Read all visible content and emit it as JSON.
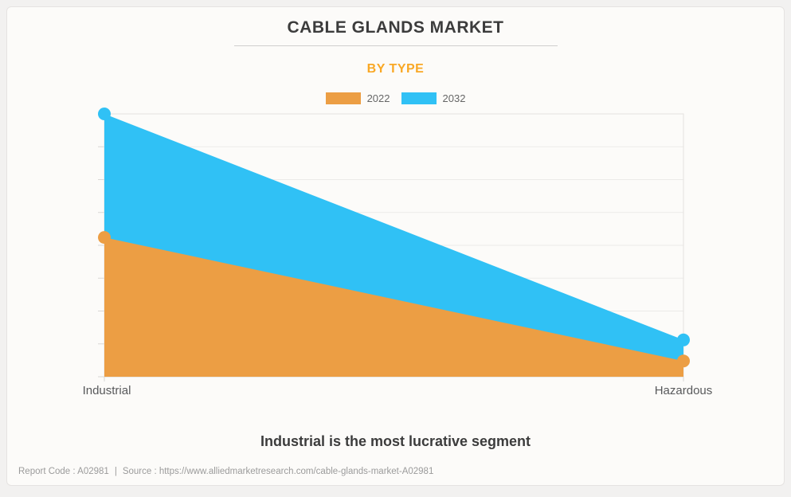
{
  "page": {
    "background_color": "#F2F1F0",
    "card_background": "#FCFBF9",
    "card_border_color": "#E5E3E1"
  },
  "header": {
    "title": "CABLE GLANDS MARKET",
    "title_color": "#3C3C3C",
    "subtitle": "BY TYPE",
    "subtitle_color": "#F9A825"
  },
  "chart_data": {
    "type": "area",
    "categories": [
      "Industrial",
      "Hazardous"
    ],
    "series": [
      {
        "name": "2022",
        "color": "#EC9E44",
        "values": [
          53,
          6
        ]
      },
      {
        "name": "2032",
        "color": "#30C1F5",
        "values": [
          100,
          14
        ]
      }
    ],
    "title": "CABLE GLANDS MARKET",
    "subtitle": "BY TYPE",
    "xlabel": "",
    "ylabel": "",
    "ylim": [
      0,
      100
    ],
    "y_axis_labels": "none shown (unlabeled relative scale, max = 2032 Industrial)",
    "grid": "horizontal",
    "gridline_count": 9,
    "grid_color": "#ECEBE9",
    "axis_color": "#D9D7D5",
    "marker_radius": 8,
    "legend_position": "top"
  },
  "annotation": {
    "text": "Industrial is the most lucrative segment"
  },
  "footer": {
    "report_code": "Report Code : A02981",
    "separator": "|",
    "source": "Source : https://www.alliedmarketresearch.com/cable-glands-market-A02981"
  }
}
